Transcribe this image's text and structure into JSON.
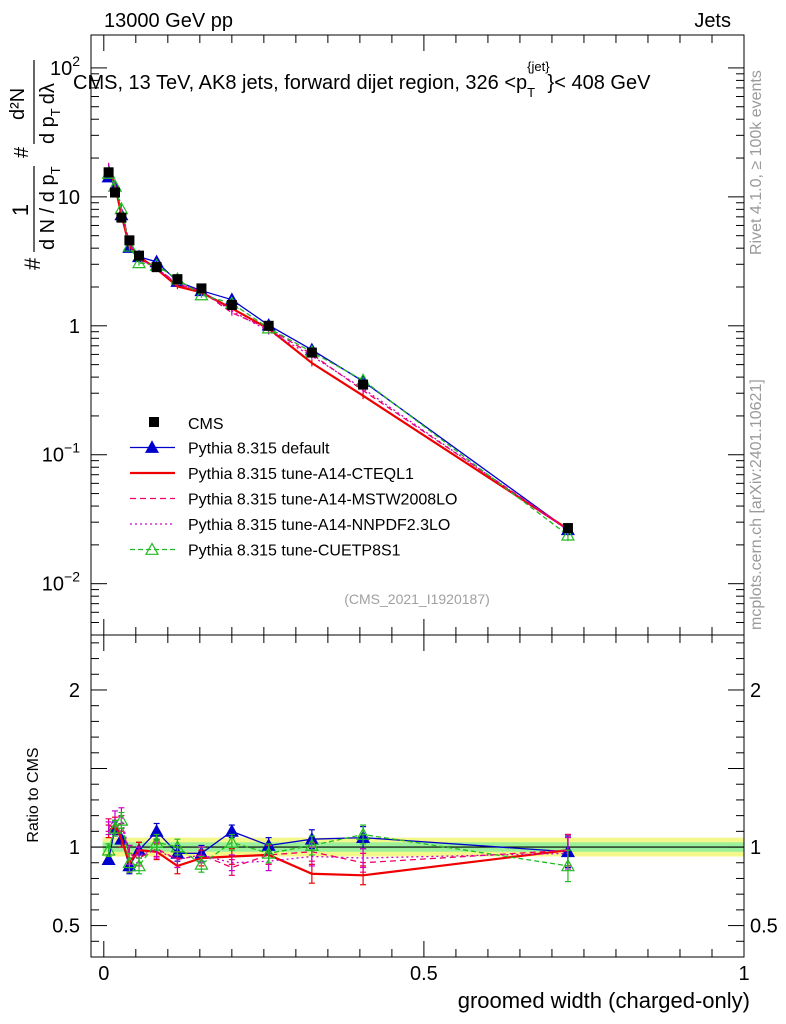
{
  "header": {
    "left": "13000 GeV pp",
    "right": "Jets"
  },
  "side_labels": {
    "rivet": "Rivet 4.1.0, ≥ 100k events",
    "mcplots": "mcplots.cern.ch [arXiv:2401.10621]"
  },
  "watermark": "(CMS_2021_I1920187)",
  "ylabel_top": {
    "num": "1",
    "den": "d N / d p",
    "den_sub": "T",
    "hash": "#",
    "rhs_num": "d²N",
    "rhs_den": "d p",
    "rhs_den_sub": "T",
    "rhs_den_tail": "dλ",
    "hash2": "#"
  },
  "ylabel_ratio": "Ratio to CMS",
  "chart_data": {
    "type": "line",
    "title": "CMS, 13 TeV, AK8 jets, forward dijet region, 326 <p_T^{jet}< 408 GeV",
    "title_parts": {
      "pre": "CMS, 13 TeV, AK8 jets, forward dijet region, 326 <p",
      "sub": "T",
      "sup": "{jet}",
      "post": "}< 408 GeV"
    },
    "xlabel": "groomed width (charged-only)",
    "xlim": [
      -0.02,
      1.0
    ],
    "ylim": [
      0.004,
      180
    ],
    "yscale": "log",
    "ratio_ylim": [
      0.3,
      2.35
    ],
    "x_ticks": [
      "0",
      "0.5",
      "1"
    ],
    "x_tick_values": [
      0,
      0.5,
      1
    ],
    "y_ticks": [
      {
        "value": 0.01,
        "base": "10",
        "exp": "−2"
      },
      {
        "value": 0.1,
        "base": "10",
        "exp": "−1"
      },
      {
        "value": 1,
        "base": "1",
        "exp": ""
      },
      {
        "value": 10,
        "base": "10",
        "exp": ""
      },
      {
        "value": 100,
        "base": "10",
        "exp": "2"
      }
    ],
    "ratio_ticks": [
      {
        "value": 0.5,
        "label": "0.5"
      },
      {
        "value": 1,
        "label": "1"
      },
      {
        "value": 2,
        "label": "2"
      }
    ],
    "x": [
      0.0075,
      0.0175,
      0.0275,
      0.04,
      0.055,
      0.0825,
      0.115,
      0.1525,
      0.2,
      0.2575,
      0.325,
      0.405,
      0.725
    ],
    "data": {
      "name": "CMS",
      "values": [
        15.5,
        10.8,
        6.9,
        4.6,
        3.5,
        2.85,
        2.3,
        1.95,
        1.45,
        1.0,
        0.62,
        0.35,
        0.027
      ],
      "errors": [
        0.8,
        0.5,
        0.3,
        0.2,
        0.15,
        0.12,
        0.1,
        0.08,
        0.07,
        0.05,
        0.03,
        0.02,
        0.002
      ],
      "ratio_band_stat": 0.03,
      "ratio_band_total": 0.06
    },
    "series": [
      {
        "name": "Pythia 8.315 default",
        "color": "#0000cc",
        "dash": "",
        "marker": "triangle-filled",
        "ratio": [
          0.92,
          1.12,
          1.05,
          0.88,
          0.98,
          1.1,
          0.96,
          0.96,
          1.1,
          1.01,
          1.05,
          1.06,
          0.97
        ],
        "ratio_err": [
          0.03,
          0.04,
          0.05,
          0.05,
          0.05,
          0.05,
          0.05,
          0.05,
          0.04,
          0.05,
          0.06,
          0.07,
          0.1
        ]
      },
      {
        "name": "Pythia 8.315 tune-A14-CTEQL1",
        "color": "#ee0000",
        "dash": "",
        "marker": "",
        "ratio": [
          1.1,
          1.14,
          1.05,
          0.9,
          0.98,
          0.97,
          0.88,
          0.93,
          0.94,
          0.95,
          0.83,
          0.82,
          0.98
        ],
        "ratio_err": [
          0.04,
          0.05,
          0.05,
          0.06,
          0.05,
          0.05,
          0.05,
          0.05,
          0.05,
          0.06,
          0.06,
          0.06,
          0.1
        ]
      },
      {
        "name": "Pythia 8.315 tune-A14-MSTW2008LO",
        "color": "#ee0066",
        "dash": "6,4",
        "marker": "",
        "ratio": [
          1.14,
          1.12,
          1.15,
          0.95,
          0.93,
          0.99,
          0.92,
          0.95,
          0.87,
          0.95,
          0.97,
          0.9,
          0.98
        ],
        "ratio_err": [
          0.04,
          0.05,
          0.05,
          0.06,
          0.05,
          0.05,
          0.05,
          0.05,
          0.05,
          0.06,
          0.06,
          0.06,
          0.1
        ]
      },
      {
        "name": "Pythia 8.315 tune-A14-NNPDF2.3LO",
        "color": "#cc00cc",
        "dash": "2,3",
        "marker": "",
        "ratio": [
          1.12,
          1.18,
          1.2,
          0.95,
          0.95,
          0.98,
          0.92,
          0.95,
          0.9,
          0.91,
          0.94,
          0.93,
          0.96
        ],
        "ratio_err": [
          0.04,
          0.05,
          0.05,
          0.06,
          0.05,
          0.05,
          0.05,
          0.05,
          0.05,
          0.06,
          0.06,
          0.06,
          0.1
        ]
      },
      {
        "name": "Pythia 8.315 tune-CUETP8S1",
        "color": "#22bb22",
        "dash": "5,3",
        "marker": "triangle-open",
        "ratio": [
          0.98,
          1.12,
          1.17,
          0.9,
          0.88,
          1.03,
          1.0,
          0.89,
          1.03,
          0.96,
          1.01,
          1.08,
          0.88
        ],
        "ratio_err": [
          0.04,
          0.05,
          0.05,
          0.06,
          0.05,
          0.05,
          0.05,
          0.05,
          0.05,
          0.06,
          0.06,
          0.06,
          0.1
        ]
      }
    ]
  }
}
